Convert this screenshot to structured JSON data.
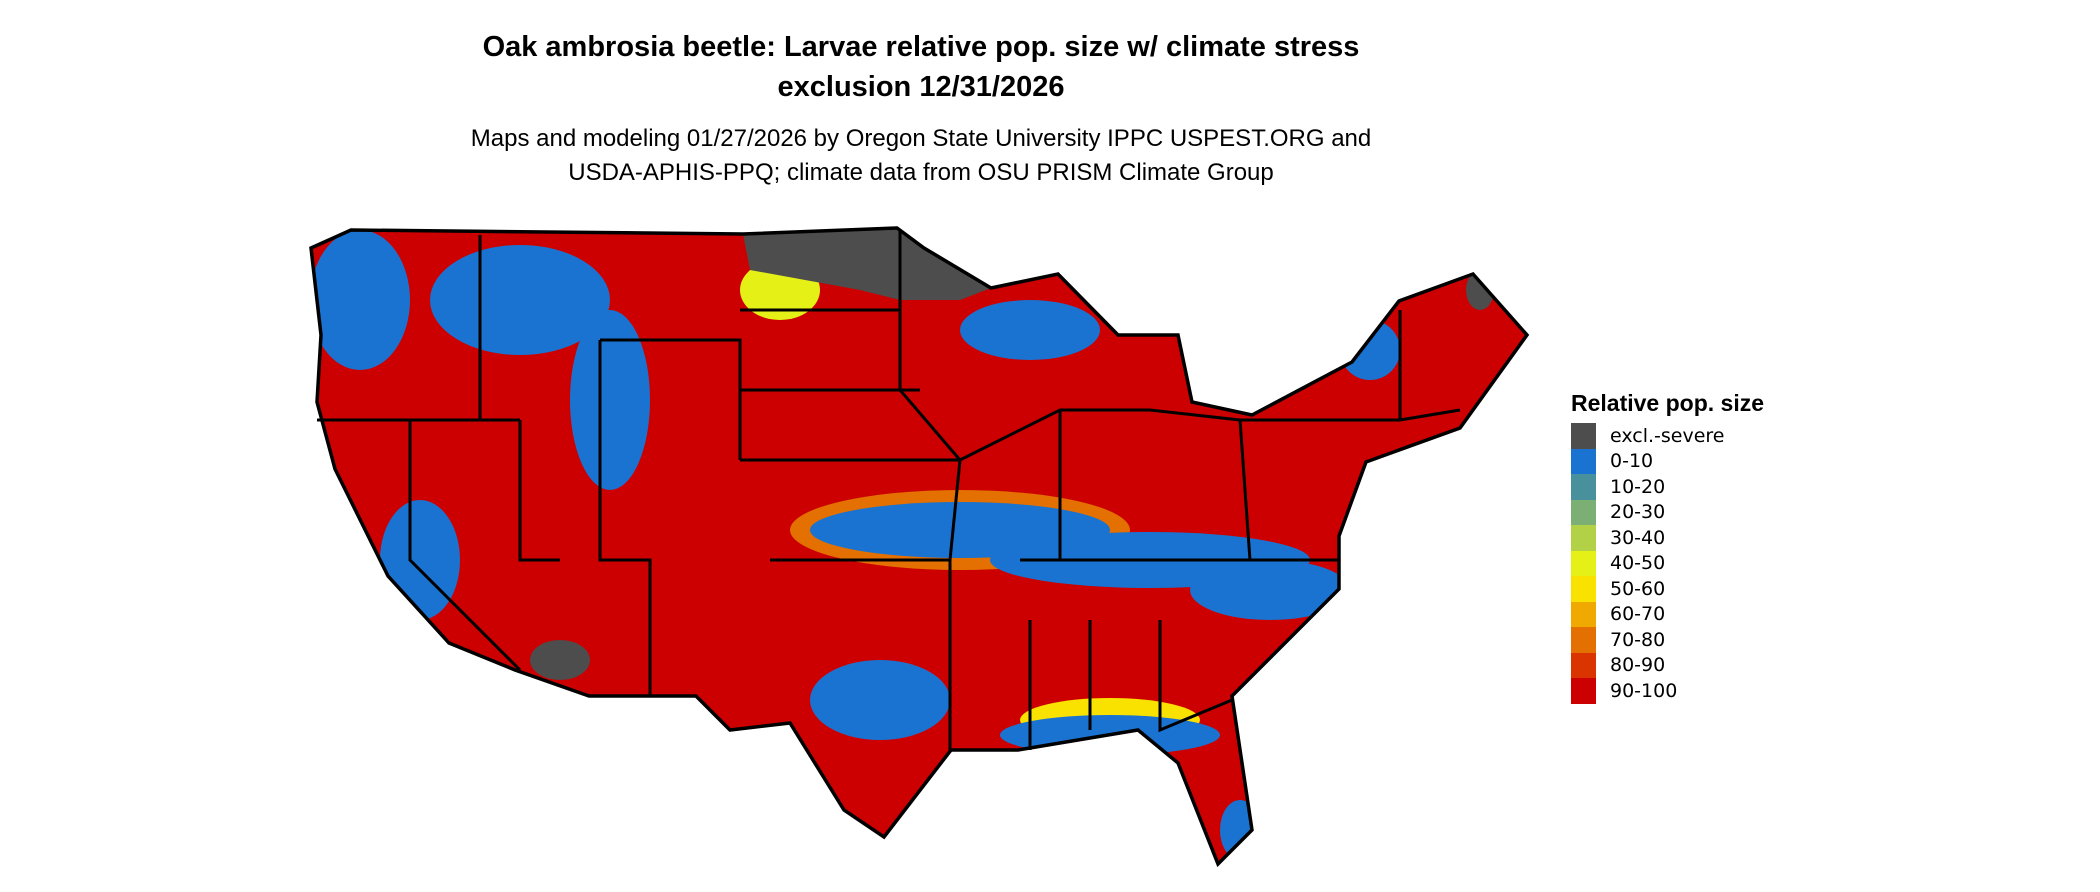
{
  "title": {
    "line1": "Oak ambrosia beetle: Larvae relative pop. size w/ climate stress",
    "line2": "exclusion 12/31/2026"
  },
  "subtitle": {
    "line1": "Maps and modeling 01/27/2026 by Oregon State University IPPC USPEST.ORG and",
    "line2": "USDA-APHIS-PPQ; climate data from OSU PRISM Climate Group"
  },
  "legend": {
    "title": "Relative pop. size",
    "items": [
      {
        "label": "excl.-severe",
        "color": "#4d4d4d"
      },
      {
        "label": "0-10",
        "color": "#1a73d0"
      },
      {
        "label": "10-20",
        "color": "#48909b"
      },
      {
        "label": "20-30",
        "color": "#7baf73"
      },
      {
        "label": "30-40",
        "color": "#b2d147"
      },
      {
        "label": "40-50",
        "color": "#e4f016"
      },
      {
        "label": "50-60",
        "color": "#f9e100"
      },
      {
        "label": "60-70",
        "color": "#efa900"
      },
      {
        "label": "70-80",
        "color": "#e37000"
      },
      {
        "label": "80-90",
        "color": "#da3400"
      },
      {
        "label": "90-100",
        "color": "#cc0000"
      }
    ]
  }
}
